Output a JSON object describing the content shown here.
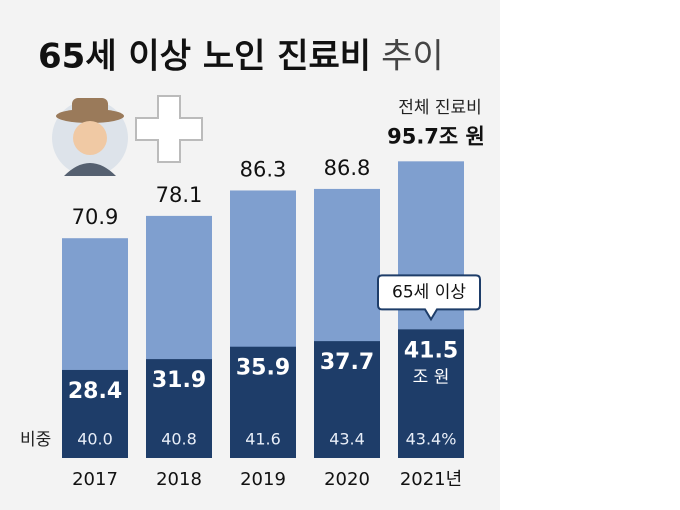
{
  "chart_data": {
    "type": "bar",
    "title": "65세 이상 노인 진료비",
    "title_suffix": "추이",
    "categories": [
      "2017",
      "2018",
      "2019",
      "2020",
      "2021년"
    ],
    "series": [
      {
        "name": "전체 진료비",
        "color": "#7f9fcf",
        "values": [
          70.9,
          78.1,
          86.3,
          86.8,
          95.7
        ],
        "value_labels": [
          "70.9",
          "78.1",
          "86.3",
          "86.8",
          "95.7조 원"
        ]
      },
      {
        "name": "65세 이상",
        "color": "#1e3d69",
        "values": [
          28.4,
          31.9,
          35.9,
          37.7,
          41.5
        ],
        "unit_label": "조 원"
      }
    ],
    "share_label": "비중",
    "shares": [
      40.0,
      40.8,
      41.6,
      43.4,
      43.4
    ],
    "share_labels": [
      "40.0",
      "40.8",
      "41.6",
      "43.4",
      "43.4%"
    ]
  }
}
